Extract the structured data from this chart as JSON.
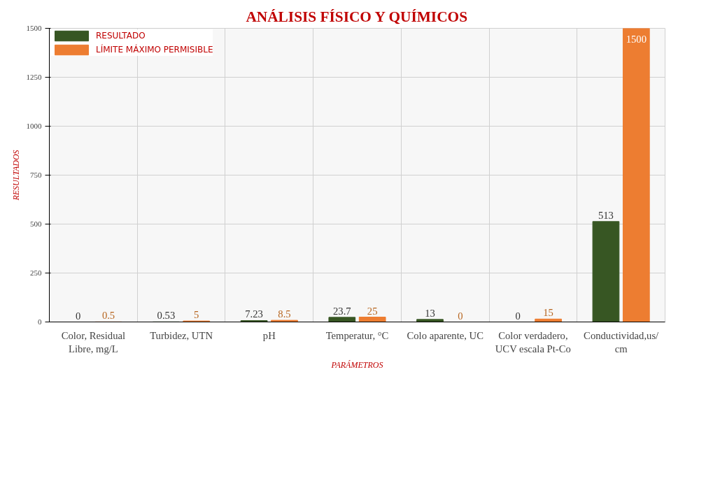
{
  "chart_data": {
    "type": "bar",
    "title": "ANÁLISIS FÍSICO Y QUÍMICOS",
    "xlabel": "PARÁMETROS",
    "ylabel": "RESULTADOS",
    "categories": [
      "Color, Residual Libre, mg/L",
      "Turbidez, UTN",
      "pH",
      "Temperatur, °C",
      "Colo aparente, UC",
      "Color verdadero, UCV escala Pt-Co",
      "Conductividad,us/cm"
    ],
    "series": [
      {
        "name": "RESULTADO",
        "color": "#375623",
        "values": [
          0,
          0.53,
          7.23,
          23.7,
          13,
          0,
          513
        ]
      },
      {
        "name": "LÍMITE MÁXIMO PERMISIBLE",
        "color": "#ed7d31",
        "values": [
          0.5,
          5,
          8.5,
          25,
          0,
          15,
          1500
        ]
      }
    ],
    "ylim": [
      0,
      1500
    ],
    "yticks": [
      0,
      250,
      500,
      750,
      1000,
      1250,
      1500
    ],
    "grid": true,
    "legend": "top left",
    "data_labels": true
  }
}
